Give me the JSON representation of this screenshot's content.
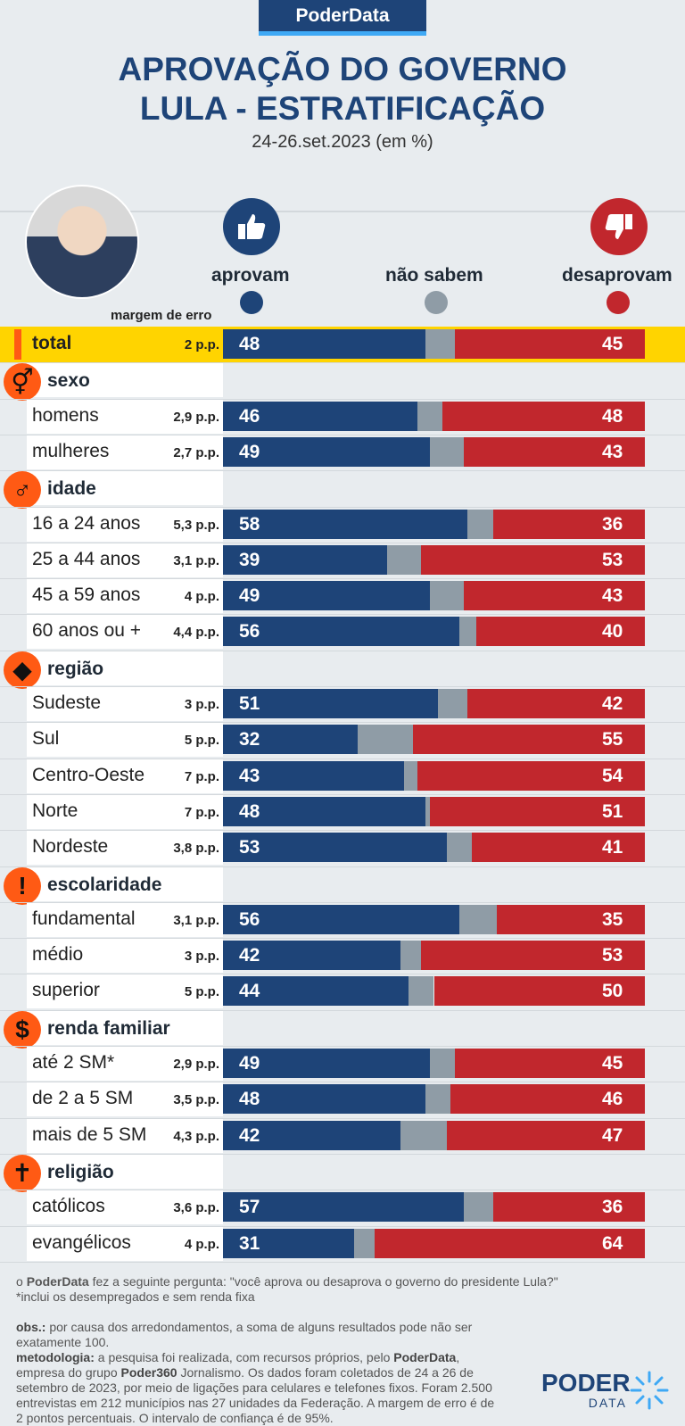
{
  "brand": "PoderData",
  "title_line1": "APROVAÇÃO DO GOVERNO",
  "title_line2": "LULA - ESTRATIFICAÇÃO",
  "subtitle": "24-26.set.2023 (em %)",
  "legend": {
    "approve": "aprovam",
    "dontknow": "não sabem",
    "disapprove": "desaprovam",
    "approve_icon": "thumbs-up-icon",
    "disapprove_icon": "thumbs-down-icon"
  },
  "margin_header": "margem de erro",
  "colors": {
    "approve": "#1e4478",
    "dontknow": "#8f9ca6",
    "disapprove": "#c1272d",
    "highlight": "#ffd400",
    "category_icon": "#ff5a14"
  },
  "chart_data": {
    "type": "bar",
    "orientation": "horizontal-stacked",
    "series_order": [
      "aprovam",
      "não sabem",
      "desaprovam"
    ],
    "total": {
      "label": "total",
      "moe": "2 p.p.",
      "approve": 48,
      "disapprove": 45
    },
    "groups": [
      {
        "name": "sexo",
        "icon": "gender-icon",
        "rows": [
          {
            "label": "homens",
            "moe": "2,9 p.p.",
            "approve": 46,
            "disapprove": 48
          },
          {
            "label": "mulheres",
            "moe": "2,7 p.p.",
            "approve": 49,
            "disapprove": 43
          }
        ]
      },
      {
        "name": "idade",
        "icon": "person-icon",
        "rows": [
          {
            "label": "16 a 24 anos",
            "moe": "5,3 p.p.",
            "approve": 58,
            "disapprove": 36
          },
          {
            "label": "25 a 44 anos",
            "moe": "3,1 p.p.",
            "approve": 39,
            "disapprove": 53
          },
          {
            "label": "45 a 59 anos",
            "moe": "4 p.p.",
            "approve": 49,
            "disapprove": 43
          },
          {
            "label": "60 anos ou +",
            "moe": "4,4 p.p.",
            "approve": 56,
            "disapprove": 40
          }
        ]
      },
      {
        "name": "região",
        "icon": "brazil-map-icon",
        "rows": [
          {
            "label": "Sudeste",
            "moe": "3 p.p.",
            "approve": 51,
            "disapprove": 42
          },
          {
            "label": "Sul",
            "moe": "5 p.p.",
            "approve": 32,
            "disapprove": 55
          },
          {
            "label": "Centro-Oeste",
            "moe": "7 p.p.",
            "approve": 43,
            "disapprove": 54
          },
          {
            "label": "Norte",
            "moe": "7 p.p.",
            "approve": 48,
            "disapprove": 51
          },
          {
            "label": "Nordeste",
            "moe": "3,8 p.p.",
            "approve": 53,
            "disapprove": 41
          }
        ]
      },
      {
        "name": "escolaridade",
        "icon": "exclamation-icon",
        "rows": [
          {
            "label": "fundamental",
            "moe": "3,1 p.p.",
            "approve": 56,
            "disapprove": 35
          },
          {
            "label": "médio",
            "moe": "3 p.p.",
            "approve": 42,
            "disapprove": 53
          },
          {
            "label": "superior",
            "moe": "5 p.p.",
            "approve": 44,
            "disapprove": 50
          }
        ]
      },
      {
        "name": "renda familiar",
        "icon": "dollar-icon",
        "rows": [
          {
            "label": "até 2 SM*",
            "moe": "2,9 p.p.",
            "approve": 49,
            "disapprove": 45
          },
          {
            "label": "de 2 a 5 SM",
            "moe": "3,5 p.p.",
            "approve": 48,
            "disapprove": 46
          },
          {
            "label": "mais de 5 SM",
            "moe": "4,3 p.p.",
            "approve": 42,
            "disapprove": 47
          }
        ]
      },
      {
        "name": "religião",
        "icon": "cross-icon",
        "rows": [
          {
            "label": "católicos",
            "moe": "3,6 p.p.",
            "approve": 57,
            "disapprove": 36
          },
          {
            "label": "evangélicos",
            "moe": "4 p.p.",
            "approve": 31,
            "disapprove": 64
          }
        ]
      }
    ]
  },
  "footer": {
    "q_prefix": "o ",
    "q_brand": "PoderData",
    "q_text": " fez a seguinte pergunta: \"você aprova ou desaprova o governo do presidente Lula?\"",
    "note": "*inclui os desempregados e sem renda fixa",
    "obs_label": "obs.:",
    "obs_text": " por causa dos arredondamentos, a soma de alguns resultados pode não ser exatamente 100.",
    "met_label": "metodologia:",
    "met_text1": " a pesquisa foi realizada, com recursos próprios, pelo ",
    "met_brand": "PoderData",
    "met_text2": ", empresa do grupo ",
    "met_group": "Poder360",
    "met_text3": " Jornalismo. Os dados foram coletados de 24 a 26 de setembro de 2023, por meio de ligações para celulares e telefones fixos. Foram 2.500 entrevistas em 212 municípios nas 27 unidades da Federação. A margem de erro é de 2 pontos percentuais. O intervalo de confiança é de 95%."
  },
  "logo_line1": "PODER",
  "logo_line2": "DATA"
}
